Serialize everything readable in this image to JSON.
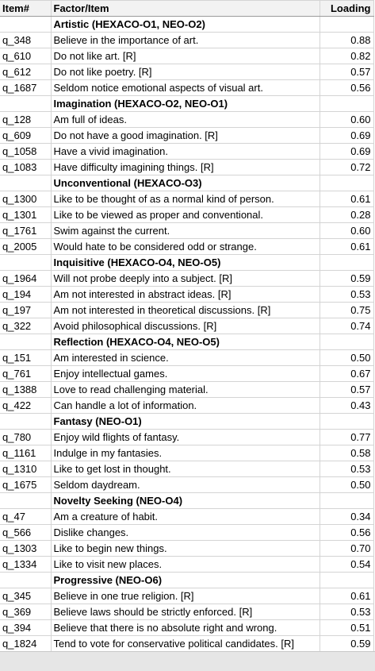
{
  "header": {
    "item": "Item#",
    "factor": "Factor/Item",
    "loading": "Loading"
  },
  "rows": [
    {
      "type": "group",
      "label": "Artistic (HEXACO-O1, NEO-O2)"
    },
    {
      "type": "item",
      "id": "q_348",
      "text": "Believe in the importance of art.",
      "loading": "0.88"
    },
    {
      "type": "item",
      "id": "q_610",
      "text": "Do not like art. [R]",
      "loading": "0.82"
    },
    {
      "type": "item",
      "id": "q_612",
      "text": "Do not like poetry. [R]",
      "loading": "0.57"
    },
    {
      "type": "item",
      "id": "q_1687",
      "text": "Seldom notice emotional aspects of visual art.",
      "loading": "0.56"
    },
    {
      "type": "group",
      "label": "Imagination (HEXACO-O2, NEO-O1)"
    },
    {
      "type": "item",
      "id": "q_128",
      "text": "Am full of ideas.",
      "loading": "0.60"
    },
    {
      "type": "item",
      "id": "q_609",
      "text": "Do not have a good imagination. [R]",
      "loading": "0.69"
    },
    {
      "type": "item",
      "id": "q_1058",
      "text": "Have a vivid imagination.",
      "loading": "0.69"
    },
    {
      "type": "item",
      "id": "q_1083",
      "text": "Have difficulty imagining things. [R]",
      "loading": "0.72"
    },
    {
      "type": "group",
      "label": "Unconventional (HEXACO-O3)"
    },
    {
      "type": "item",
      "id": "q_1300",
      "text": "Like to be thought of as a normal kind of person.",
      "loading": "0.61"
    },
    {
      "type": "item",
      "id": "q_1301",
      "text": "Like to be viewed as proper and conventional.",
      "loading": "0.28"
    },
    {
      "type": "item",
      "id": "q_1761",
      "text": "Swim against the current.",
      "loading": "0.60"
    },
    {
      "type": "item",
      "id": "q_2005",
      "text": "Would hate to be considered odd or strange.",
      "loading": "0.61"
    },
    {
      "type": "group",
      "label": "Inquisitive (HEXACO-O4, NEO-O5)"
    },
    {
      "type": "item",
      "id": "q_1964",
      "text": "Will not probe deeply into a subject. [R]",
      "loading": "0.59"
    },
    {
      "type": "item",
      "id": "q_194",
      "text": "Am not interested in abstract ideas. [R]",
      "loading": "0.53"
    },
    {
      "type": "item",
      "id": "q_197",
      "text": "Am not interested in theoretical discussions. [R]",
      "loading": "0.75"
    },
    {
      "type": "item",
      "id": "q_322",
      "text": "Avoid philosophical discussions. [R]",
      "loading": "0.74"
    },
    {
      "type": "group",
      "label": "Reflection (HEXACO-O4, NEO-O5)"
    },
    {
      "type": "item",
      "id": "q_151",
      "text": "Am interested in science.",
      "loading": "0.50"
    },
    {
      "type": "item",
      "id": "q_761",
      "text": "Enjoy intellectual games.",
      "loading": "0.67"
    },
    {
      "type": "item",
      "id": "q_1388",
      "text": "Love to read challenging material.",
      "loading": "0.57"
    },
    {
      "type": "item",
      "id": "q_422",
      "text": "Can handle a lot of information.",
      "loading": "0.43"
    },
    {
      "type": "group",
      "label": "Fantasy (NEO-O1)"
    },
    {
      "type": "item",
      "id": "q_780",
      "text": "Enjoy wild flights of fantasy.",
      "loading": "0.77"
    },
    {
      "type": "item",
      "id": "q_1161",
      "text": "Indulge in my fantasies.",
      "loading": "0.58"
    },
    {
      "type": "item",
      "id": "q_1310",
      "text": "Like to get lost in thought.",
      "loading": "0.53"
    },
    {
      "type": "item",
      "id": "q_1675",
      "text": "Seldom daydream.",
      "loading": "0.50"
    },
    {
      "type": "group",
      "label": "Novelty Seeking (NEO-O4)"
    },
    {
      "type": "item",
      "id": "q_47",
      "text": "Am a creature of habit.",
      "loading": "0.34"
    },
    {
      "type": "item",
      "id": "q_566",
      "text": "Dislike changes.",
      "loading": "0.56"
    },
    {
      "type": "item",
      "id": "q_1303",
      "text": "Like to begin new things.",
      "loading": "0.70"
    },
    {
      "type": "item",
      "id": "q_1334",
      "text": "Like to visit new places.",
      "loading": "0.54"
    },
    {
      "type": "group",
      "label": "Progressive (NEO-O6)"
    },
    {
      "type": "item",
      "id": "q_345",
      "text": "Believe in one true religion. [R]",
      "loading": "0.61"
    },
    {
      "type": "item",
      "id": "q_369",
      "text": "Believe laws should be strictly enforced. [R]",
      "loading": "0.53"
    },
    {
      "type": "item",
      "id": "q_394",
      "text": "Believe that there is no absolute right and wrong.",
      "loading": "0.51"
    },
    {
      "type": "item",
      "id": "q_1824",
      "text": "Tend to vote for conservative political candidates. [R]",
      "loading": "0.59"
    }
  ]
}
